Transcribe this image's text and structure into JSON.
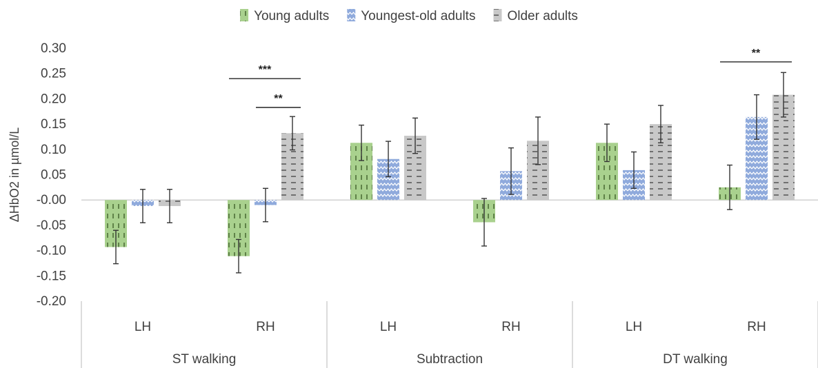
{
  "chart_data": {
    "type": "bar",
    "ylabel": "ΔHbO2  in µmol/L",
    "ylim": [
      -0.2,
      0.3
    ],
    "ytick_step": 0.05,
    "grid": false,
    "legend_position": "top",
    "groups": [
      {
        "label": "ST walking",
        "subcategories": [
          "LH",
          "RH"
        ]
      },
      {
        "label": "Subtraction",
        "subcategories": [
          "LH",
          "RH"
        ]
      },
      {
        "label": "DT walking",
        "subcategories": [
          "LH",
          "RH"
        ]
      }
    ],
    "categories": [
      "ST walking LH",
      "ST walking RH",
      "Subtraction LH",
      "Subtraction RH",
      "DT walking LH",
      "DT walking RH"
    ],
    "series": [
      {
        "name": "Young adults",
        "color": "#a9d18e",
        "pattern": "vertical-dash",
        "values": [
          -0.093,
          -0.111,
          0.113,
          -0.044,
          0.113,
          0.025
        ],
        "errors": [
          0.033,
          0.033,
          0.035,
          0.047,
          0.037,
          0.044
        ]
      },
      {
        "name": "Youngest-old adults",
        "color": "#8faadc",
        "pattern": "zigzag",
        "values": [
          -0.012,
          -0.01,
          0.081,
          0.057,
          0.059,
          0.164
        ],
        "errors": [
          0.033,
          0.033,
          0.035,
          0.046,
          0.036,
          0.044
        ]
      },
      {
        "name": "Older adults",
        "color": "#bfbfbf",
        "pattern": "horizontal-dash",
        "values": [
          -0.012,
          0.132,
          0.127,
          0.117,
          0.15,
          0.208
        ],
        "errors": [
          0.033,
          0.033,
          0.035,
          0.047,
          0.037,
          0.044
        ]
      }
    ],
    "annotations": [
      {
        "text": "***",
        "category": 1,
        "from_series": 0,
        "to_series": 2,
        "y": 0.24
      },
      {
        "text": "**",
        "category": 1,
        "from_series": 1,
        "to_series": 2,
        "y": 0.183
      },
      {
        "text": "**",
        "category": 5,
        "from_series": 0,
        "to_series": 2,
        "y": 0.273
      }
    ]
  }
}
